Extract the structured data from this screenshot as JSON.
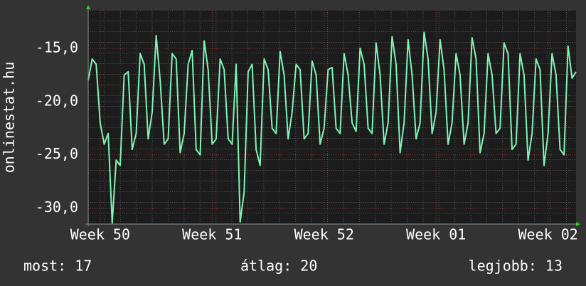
{
  "chart_data": {
    "type": "line",
    "ylabel": "onlinestat.hu",
    "color": "#7ff5b5",
    "values": [
      -18,
      -16,
      -16.5,
      -22,
      -24,
      -23,
      -31.4,
      -25.5,
      -26,
      -17.5,
      -17.2,
      -24.5,
      -23,
      -15.5,
      -16.5,
      -23.5,
      -21,
      -13.8,
      -18,
      -24,
      -23.5,
      -15.5,
      -16,
      -24.8,
      -23,
      -16.5,
      -15.2,
      -24.5,
      -25,
      -14.3,
      -17,
      -24,
      -23.5,
      -16,
      -17,
      -23.5,
      -24,
      -16.5,
      -31.3,
      -28.5,
      -17.2,
      -16.5,
      -24.5,
      -26,
      -16,
      -17,
      -22.5,
      -23,
      -15.3,
      -17.5,
      -23.5,
      -21,
      -16.5,
      -17,
      -23.5,
      -23,
      -16.2,
      -17.5,
      -24,
      -22.5,
      -17,
      -16.8,
      -22.5,
      -23,
      -15.5,
      -17.5,
      -22,
      -22.8,
      -15,
      -16.5,
      -22.5,
      -23,
      -14.5,
      -17.5,
      -24,
      -22,
      -13.9,
      -16.5,
      -24.8,
      -22,
      -14.2,
      -17.5,
      -23.5,
      -22,
      -13.5,
      -16,
      -23,
      -21,
      -14.2,
      -17,
      -24,
      -22,
      -15.5,
      -17.5,
      -24,
      -22,
      -14,
      -16,
      -24.8,
      -23,
      -15.5,
      -17.5,
      -23,
      -22.5,
      -14.5,
      -15.5,
      -24.5,
      -24,
      -15.5,
      -17.5,
      -25.5,
      -23,
      -16,
      -17,
      -26,
      -23,
      -15.5,
      -17.5,
      -24.5,
      -25,
      -14.8,
      -17.8,
      -17.2
    ],
    "xlim": [
      0,
      122
    ],
    "xticks": [
      {
        "value": 3,
        "label": "Week 50"
      },
      {
        "value": 31,
        "label": "Week 51"
      },
      {
        "value": 59,
        "label": "Week 52"
      },
      {
        "value": 87,
        "label": "Week 01"
      },
      {
        "value": 115,
        "label": "Week 02"
      }
    ],
    "ylim": [
      -31.5,
      -11.4
    ],
    "yticks": [
      {
        "value": -30,
        "label": "-30,0"
      },
      {
        "value": -25,
        "label": "-25,0"
      },
      {
        "value": -20,
        "label": "-20,0"
      },
      {
        "value": -15,
        "label": "-15,0"
      }
    ],
    "grid": true,
    "footer": [
      "most: 17",
      "átlag: 20",
      "legjobb: 13"
    ]
  }
}
